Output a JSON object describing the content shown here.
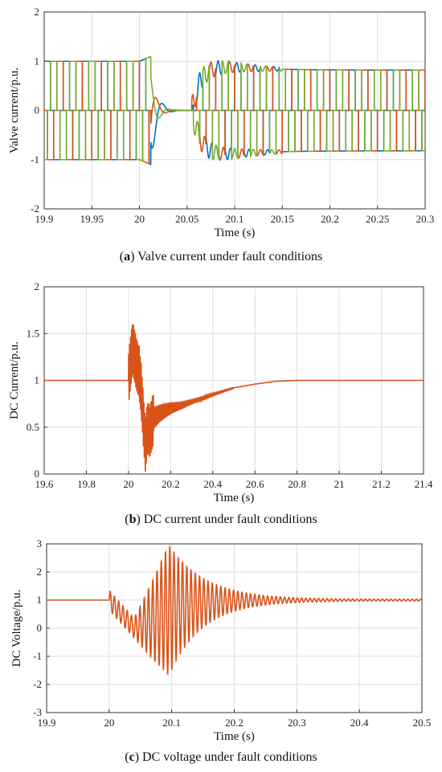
{
  "chart_data": [
    {
      "type": "line",
      "panel": "a",
      "caption_letter": "a",
      "caption_text": "Valve current under fault conditions",
      "xlabel": "Time (s)",
      "ylabel": "Valve current/p.u.",
      "xlim": [
        19.9,
        20.3
      ],
      "ylim": [
        -2,
        2
      ],
      "xticks": [
        "19.9",
        "19.95",
        "20",
        "20.05",
        "20.1",
        "20.15",
        "20.2",
        "20.25",
        "20.3"
      ],
      "yticks": [
        "-2",
        "-1",
        "0",
        "1",
        "2"
      ],
      "grid": true,
      "colors": [
        "#0072BD",
        "#D95319",
        "#77AC30"
      ],
      "description_points": {
        "pre_fault_amplitude": 1.0,
        "fault_time": 20.0,
        "disturbance_peak": 1.2,
        "recovery_amplitude": 0.8,
        "phase_period": 0.02
      }
    },
    {
      "type": "line",
      "panel": "b",
      "caption_letter": "b",
      "caption_text": "DC current under fault conditions",
      "xlabel": "Time (s)",
      "ylabel": "DC Current/p.u.",
      "xlim": [
        19.6,
        21.4
      ],
      "ylim": [
        0,
        2
      ],
      "xticks": [
        "19.6",
        "19.8",
        "20",
        "20.2",
        "20.4",
        "20.6",
        "20.8",
        "21",
        "21.2",
        "21.4"
      ],
      "yticks": [
        "0",
        "0.5",
        "1",
        "1.5",
        "2"
      ],
      "grid": true,
      "color": "#D95319",
      "series": [
        {
          "x": [
            19.6,
            20.0,
            20.01,
            20.02,
            20.03,
            20.04,
            20.05,
            20.06,
            20.07,
            20.08,
            20.09,
            20.1,
            20.12,
            20.15,
            20.2,
            20.25,
            20.3,
            20.4,
            20.5,
            20.6,
            20.7,
            20.8,
            21.0,
            21.2,
            21.4
          ],
          "values": [
            1.0,
            1.0,
            1.2,
            1.35,
            1.25,
            1.15,
            1.1,
            0.9,
            0.6,
            0.3,
            0.5,
            0.45,
            0.6,
            0.65,
            0.7,
            0.73,
            0.77,
            0.85,
            0.92,
            0.96,
            0.99,
            1.0,
            1.0,
            1.0,
            1.0
          ]
        }
      ]
    },
    {
      "type": "line",
      "panel": "c",
      "caption_letter": "c",
      "caption_text": "DC voltage under fault conditions",
      "xlabel": "Time (s)",
      "ylabel": "DC Voltage/p.u.",
      "xlim": [
        19.9,
        20.5
      ],
      "ylim": [
        -3,
        3
      ],
      "xticks": [
        "19.9",
        "20",
        "20.1",
        "20.2",
        "20.3",
        "20.4",
        "20.5"
      ],
      "yticks": [
        "-3",
        "-2",
        "-1",
        "0",
        "1",
        "2",
        "3"
      ],
      "grid": true,
      "color": "#D95319",
      "series": [
        {
          "x": [
            19.9,
            20.0,
            20.02,
            20.04,
            20.06,
            20.08,
            20.09,
            20.1,
            20.12,
            20.15,
            20.2,
            20.25,
            20.3,
            20.4,
            20.5
          ],
          "values": [
            1.0,
            1.0,
            0.5,
            -0.2,
            0.5,
            2.0,
            2.6,
            2.3,
            1.8,
            1.6,
            1.3,
            1.2,
            1.08,
            1.0,
            1.0
          ]
        }
      ]
    }
  ]
}
